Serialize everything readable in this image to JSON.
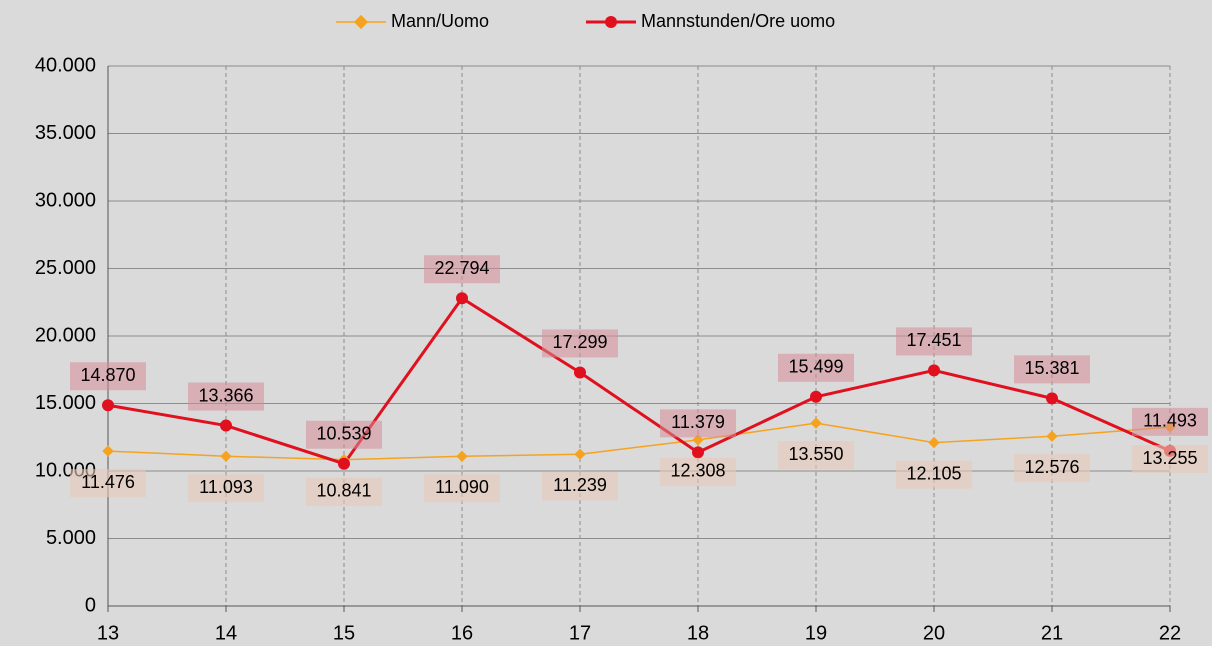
{
  "chart_data": {
    "type": "line",
    "x": [
      13,
      14,
      15,
      16,
      17,
      18,
      19,
      20,
      21,
      22
    ],
    "xlim": [
      13,
      22
    ],
    "xticks": [
      13,
      14,
      15,
      16,
      17,
      18,
      19,
      20,
      21,
      22
    ],
    "ylim": [
      0,
      40000
    ],
    "yticks": [
      0,
      {
        "value": 5000,
        "label": "5.000"
      },
      {
        "value": 10000,
        "label": "10.000"
      },
      {
        "value": 15000,
        "label": "15.000"
      },
      {
        "value": 20000,
        "label": "20.000"
      },
      {
        "value": 25000,
        "label": "25.000"
      },
      {
        "value": 30000,
        "label": "30.000"
      },
      {
        "value": 35000,
        "label": "35.000"
      },
      {
        "value": 40000,
        "label": "40.000"
      }
    ],
    "grid": true,
    "legend": "top",
    "series": [
      {
        "name": "Mann/Uomo",
        "color": "#f5a31f",
        "values": [
          11476,
          11093,
          10841,
          11090,
          11239,
          12308,
          13550,
          12105,
          12576,
          13255
        ],
        "value_labels": [
          "11.476",
          "11.093",
          "10.841",
          "11.090",
          "11.239",
          "12.308",
          "13.550",
          "12.105",
          "12.576",
          "13.255"
        ]
      },
      {
        "name": "Mannstunden/Ore uomo",
        "color": "#e0101e",
        "values": [
          14870,
          13366,
          10539,
          22794,
          17299,
          11379,
          15499,
          17451,
          15381,
          11493
        ],
        "value_labels": [
          "14.870",
          "13.366",
          "10.539",
          "22.794",
          "17.299",
          "11.379",
          "15.499",
          "17.451",
          "15.381",
          "11.493"
        ]
      }
    ]
  }
}
